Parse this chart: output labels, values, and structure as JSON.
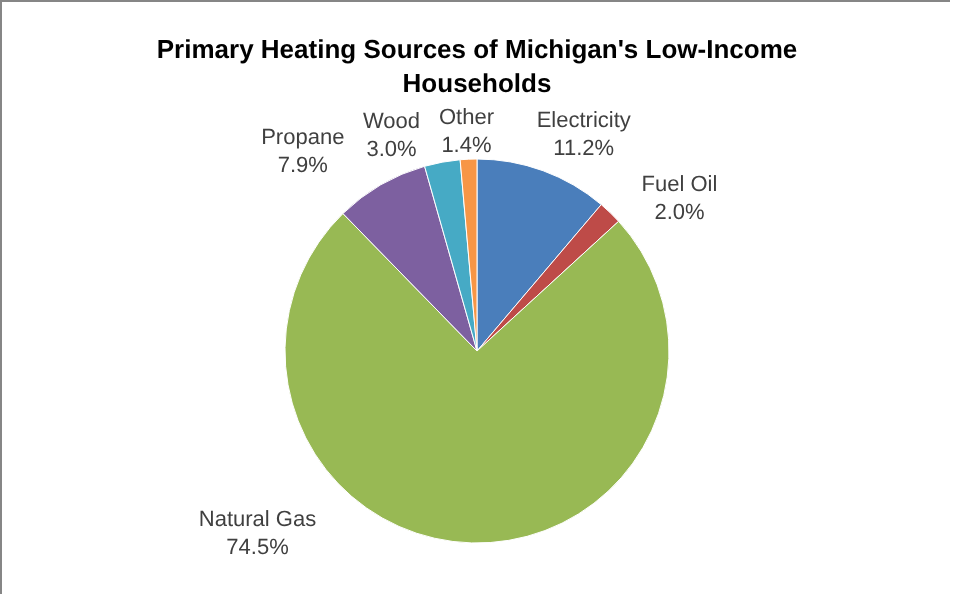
{
  "chart_data": {
    "type": "pie",
    "title": "Primary Heating Sources of Michigan's Low-Income Households",
    "categories": [
      "Electricity",
      "Fuel Oil",
      "Natural Gas",
      "Propane",
      "Wood",
      "Other"
    ],
    "values": [
      11.2,
      2.0,
      74.5,
      7.9,
      3.0,
      1.4
    ],
    "value_labels": [
      "11.2%",
      "2.0%",
      "74.5%",
      "7.9%",
      "3.0%",
      "1.4%"
    ],
    "colors": [
      "#4a7ebb",
      "#be4b48",
      "#98b954",
      "#7d60a0",
      "#46aac5",
      "#f79646"
    ]
  }
}
